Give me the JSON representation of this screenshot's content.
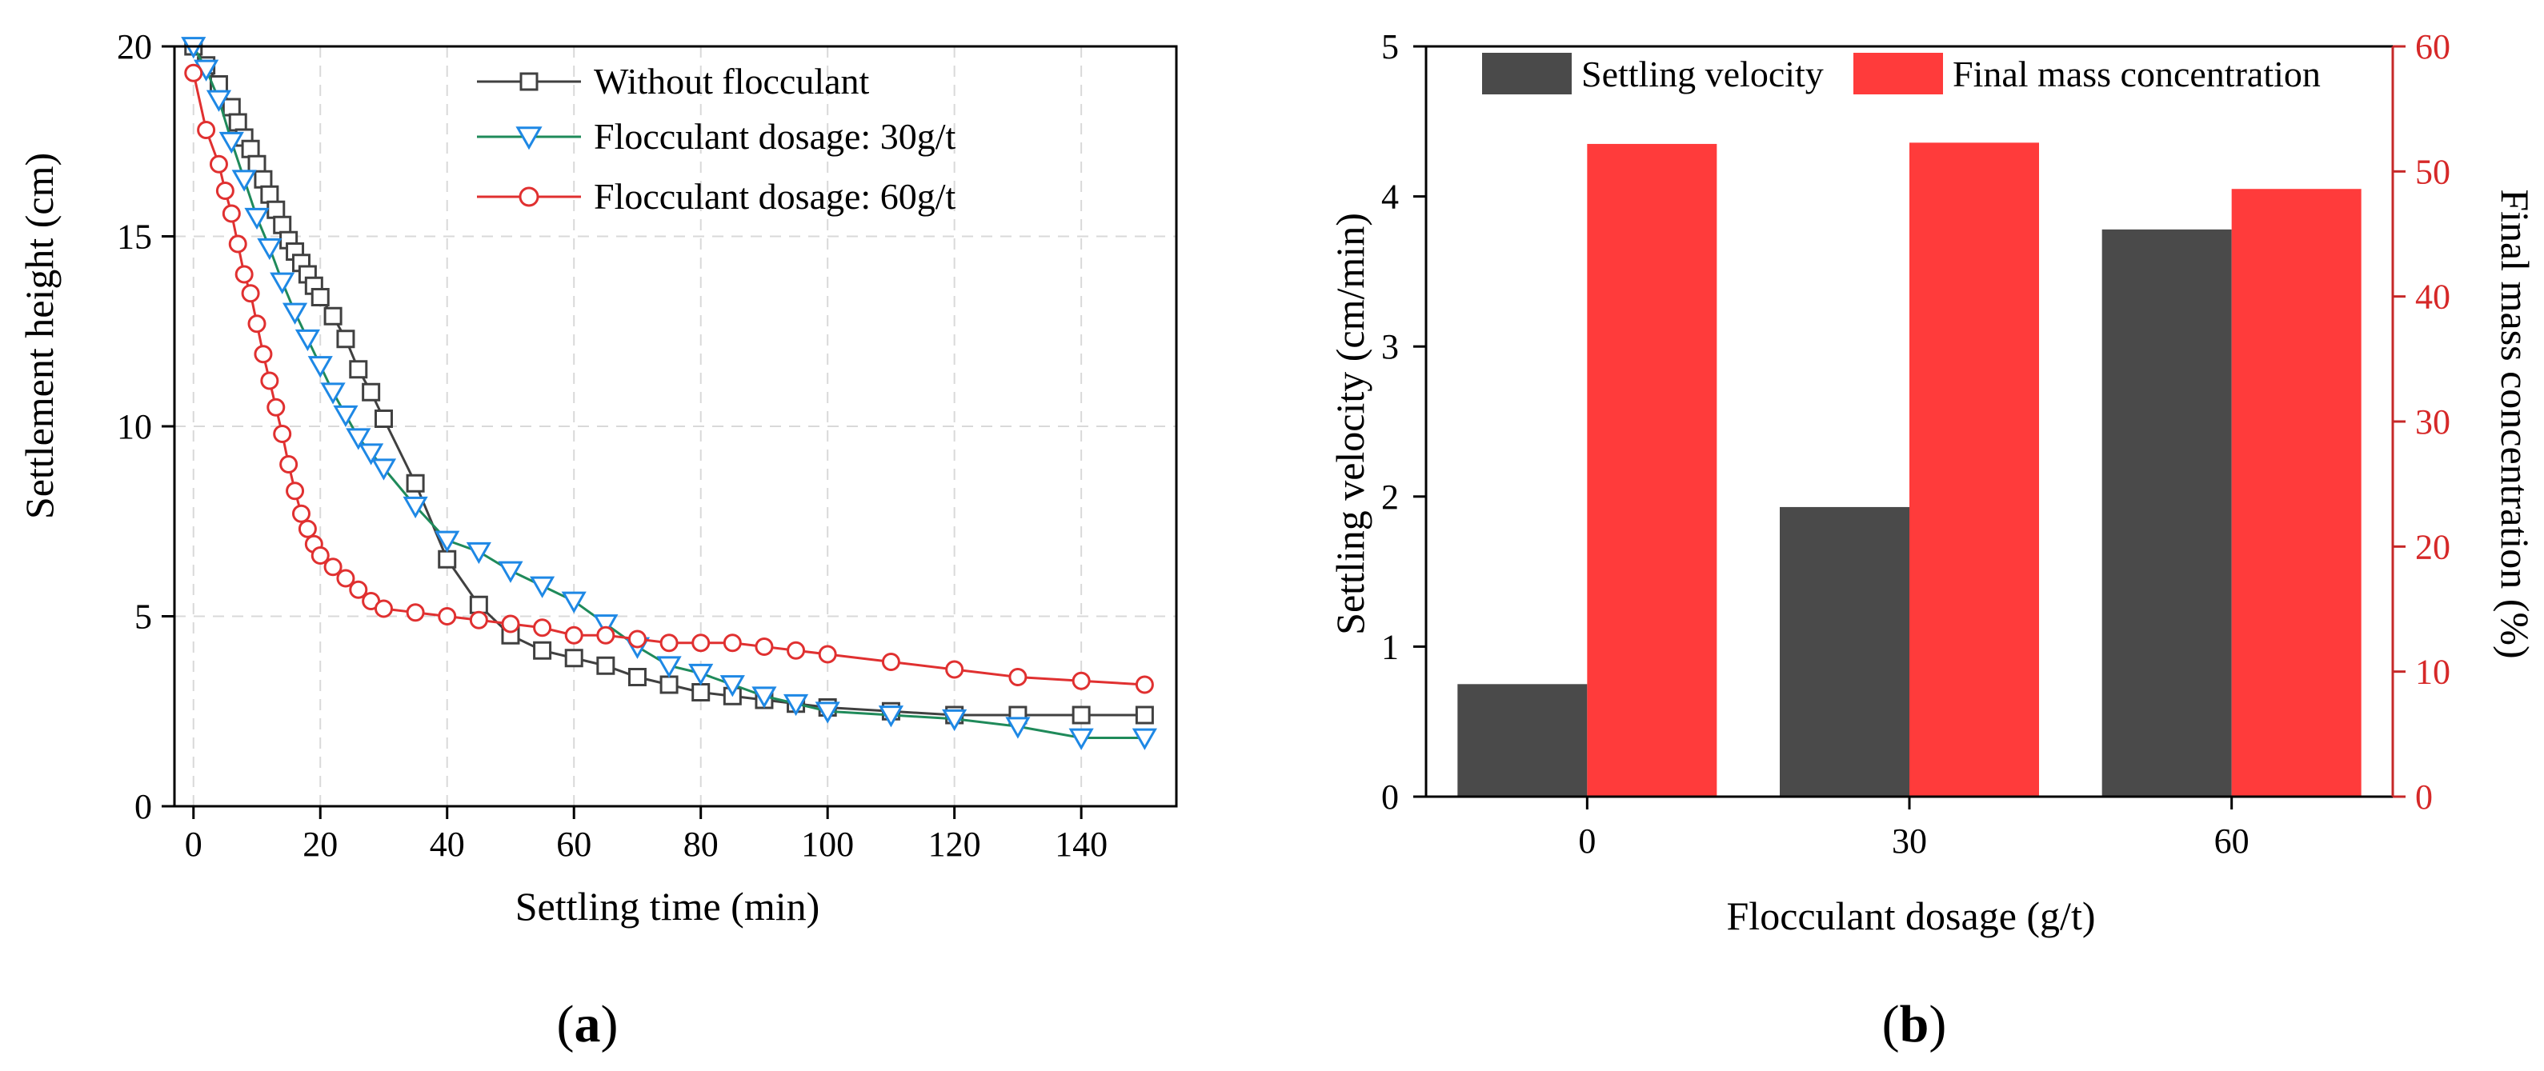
{
  "chart_data": [
    {
      "panel_label": "(a)",
      "panel_label_open": "(",
      "panel_label_letter": "a",
      "panel_label_close": ")",
      "type": "line",
      "title": "",
      "xlabel": "Settling time (min)",
      "ylabel": "Settlement height (cm)",
      "xlim": [
        -3,
        155
      ],
      "ylim": [
        0,
        20
      ],
      "xticks": [
        0,
        20,
        40,
        60,
        80,
        100,
        120,
        140
      ],
      "yticks": [
        0,
        5,
        10,
        15,
        20
      ],
      "grid": true,
      "legend_position": "top-right",
      "series": [
        {
          "name": "Without flocculant",
          "color": "#404040",
          "marker": "square",
          "x": [
            0,
            2,
            4,
            6,
            7,
            8,
            9,
            10,
            11,
            12,
            13,
            14,
            15,
            16,
            17,
            18,
            19,
            20,
            22,
            24,
            26,
            28,
            30,
            35,
            40,
            45,
            50,
            55,
            60,
            65,
            70,
            75,
            80,
            85,
            90,
            95,
            100,
            110,
            120,
            130,
            140,
            150
          ],
          "y": [
            20,
            19.5,
            19,
            18.4,
            18.0,
            17.6,
            17.3,
            16.9,
            16.5,
            16.1,
            15.7,
            15.3,
            14.9,
            14.6,
            14.3,
            14.0,
            13.7,
            13.4,
            12.9,
            12.3,
            11.5,
            10.9,
            10.2,
            8.5,
            6.5,
            5.3,
            4.5,
            4.1,
            3.9,
            3.7,
            3.4,
            3.2,
            3.0,
            2.9,
            2.8,
            2.7,
            2.6,
            2.5,
            2.4,
            2.4,
            2.4,
            2.4
          ]
        },
        {
          "name": "Flocculant dosage: 30g/t",
          "color": "#1f8a5a",
          "marker_color": "#1e88e5",
          "marker": "triangle-down",
          "x": [
            0,
            2,
            4,
            6,
            8,
            10,
            12,
            14,
            16,
            18,
            20,
            22,
            24,
            26,
            28,
            30,
            35,
            40,
            45,
            50,
            55,
            60,
            65,
            70,
            75,
            80,
            85,
            90,
            95,
            100,
            110,
            120,
            130,
            140,
            150
          ],
          "y": [
            20,
            19.4,
            18.6,
            17.5,
            16.5,
            15.5,
            14.7,
            13.8,
            13.0,
            12.3,
            11.6,
            10.9,
            10.3,
            9.7,
            9.3,
            8.9,
            7.9,
            7.0,
            6.7,
            6.2,
            5.8,
            5.4,
            4.8,
            4.2,
            3.7,
            3.5,
            3.2,
            2.9,
            2.7,
            2.5,
            2.4,
            2.3,
            2.1,
            1.8,
            1.8
          ]
        },
        {
          "name": "Flocculant dosage: 60g/t",
          "color": "#e03030",
          "marker": "circle",
          "x": [
            0,
            2,
            4,
            5,
            6,
            7,
            8,
            9,
            10,
            11,
            12,
            13,
            14,
            15,
            16,
            17,
            18,
            19,
            20,
            22,
            24,
            26,
            28,
            30,
            35,
            40,
            45,
            50,
            55,
            60,
            65,
            70,
            75,
            80,
            85,
            90,
            95,
            100,
            110,
            120,
            130,
            140,
            150
          ],
          "y": [
            19.3,
            17.8,
            16.9,
            16.2,
            15.6,
            14.8,
            14.0,
            13.5,
            12.7,
            11.9,
            11.2,
            10.5,
            9.8,
            9.0,
            8.3,
            7.7,
            7.3,
            6.9,
            6.6,
            6.3,
            6.0,
            5.7,
            5.4,
            5.2,
            5.1,
            5.0,
            4.9,
            4.8,
            4.7,
            4.5,
            4.5,
            4.4,
            4.3,
            4.3,
            4.3,
            4.2,
            4.1,
            4.0,
            3.8,
            3.6,
            3.4,
            3.3,
            3.2
          ]
        }
      ]
    },
    {
      "panel_label": "(b)",
      "panel_label_open": "(",
      "panel_label_letter": "b",
      "panel_label_close": ")",
      "type": "bar",
      "title": "",
      "xlabel": "Flocculant dosage (g/t)",
      "ylabel": "Settling velocity (cm/min)",
      "y2label": "Final mass concentration (%)",
      "categories": [
        "0",
        "30",
        "60"
      ],
      "ylim": [
        0,
        5
      ],
      "y2lim": [
        0,
        60
      ],
      "yticks": [
        0,
        1,
        2,
        3,
        4,
        5
      ],
      "y2ticks": [
        0,
        10,
        20,
        30,
        40,
        50,
        60
      ],
      "legend_position": "top",
      "axis2_color": "#c62828",
      "series": [
        {
          "name": "Settling velocity",
          "axis": "left",
          "color": "#4a4a4a",
          "values": [
            0.75,
            1.93,
            3.78
          ]
        },
        {
          "name": "Final mass concentration",
          "axis": "right",
          "color": "#ff3b3b",
          "values": [
            52.2,
            52.3,
            48.6
          ]
        }
      ]
    }
  ]
}
